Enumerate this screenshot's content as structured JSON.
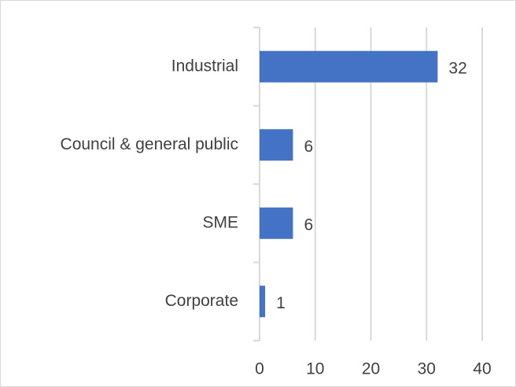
{
  "chart_data": {
    "type": "bar",
    "orientation": "horizontal",
    "categories": [
      "Industrial",
      "Council & general public",
      "SME",
      "Corporate"
    ],
    "values": [
      32,
      6,
      6,
      1
    ],
    "color": "#4472c4",
    "xlim": [
      0,
      40
    ],
    "xticks": [
      0,
      10,
      20,
      30,
      40
    ],
    "grid": true
  }
}
